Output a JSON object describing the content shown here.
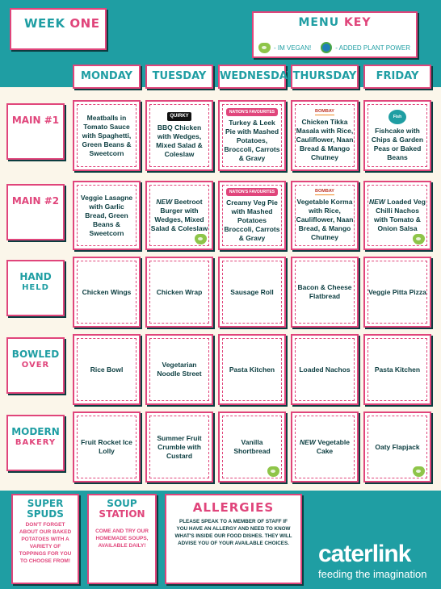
{
  "header": {
    "week_label_a": "WEEK ",
    "week_label_b": "ONE",
    "key_title_a": "MENU ",
    "key_title_b": "KEY",
    "key_vegan": "- IM VEGAN!",
    "key_plant": "- ADDED PLANT POWER"
  },
  "days": [
    "MONDAY",
    "TUESDAY",
    "WEDNESDAY",
    "THURSDAY",
    "FRIDAY"
  ],
  "rows": [
    {
      "label_a": "MAIN #1",
      "label_b": "",
      "cells": [
        {
          "text": "Meatballs in Tomato Sauce with Spaghetti, Green Beans & Sweetcorn",
          "new": "",
          "badge": "",
          "badge_type": "",
          "vegan": false
        },
        {
          "text": "BBQ Chicken with Wedges, Mixed Salad & Coleslaw",
          "new": "",
          "badge": "QUIRKY",
          "badge_type": "quirky",
          "vegan": false
        },
        {
          "text": "Turkey & Leek Pie with Mashed Potatoes, Broccoli, Carrots & Gravy",
          "new": "",
          "badge": "NATION'S FAVOURITES",
          "badge_type": "nf",
          "vegan": false
        },
        {
          "text": "Chicken Tikka Masala with Rice, Cauliflower, Naan Bread & Mango Chutney",
          "new": "",
          "badge": "BOMBAY",
          "badge_type": "bombay",
          "vegan": false
        },
        {
          "text": "Fishcake with Chips & Garden Peas or Baked Beans",
          "new": "",
          "badge": "Fish Chips",
          "badge_type": "fish",
          "vegan": false
        }
      ]
    },
    {
      "label_a": "MAIN #2",
      "label_b": "",
      "cells": [
        {
          "text": "Veggie Lasagne with Garlic Bread, Green Beans & Sweetcorn",
          "new": "",
          "badge": "",
          "badge_type": "",
          "vegan": false
        },
        {
          "text": "Beetroot Burger with Wedges, Mixed Salad & Coleslaw",
          "new": "NEW",
          "badge": "",
          "badge_type": "",
          "vegan": true
        },
        {
          "text": "Creamy Veg Pie with Mashed Potatoes Broccoli, Carrots & Gravy",
          "new": "",
          "badge": "NATION'S FAVOURITES",
          "badge_type": "nf",
          "vegan": false
        },
        {
          "text": "Vegetable Korma with Rice, Cauliflower, Naan Bread, & Mango Chutney",
          "new": "",
          "badge": "BOMBAY",
          "badge_type": "bombay",
          "vegan": false
        },
        {
          "text": "Loaded Veg Chilli Nachos with Tomato & Onion Salsa",
          "new": "NEW",
          "badge": "",
          "badge_type": "",
          "vegan": true
        }
      ]
    },
    {
      "label_a": "HAND",
      "label_b": "HELD",
      "cells": [
        {
          "text": "Chicken Wings",
          "new": "",
          "badge": "",
          "badge_type": "",
          "vegan": false
        },
        {
          "text": "Chicken Wrap",
          "new": "",
          "badge": "",
          "badge_type": "",
          "vegan": false
        },
        {
          "text": "Sausage Roll",
          "new": "",
          "badge": "",
          "badge_type": "",
          "vegan": false
        },
        {
          "text": "Bacon & Cheese Flatbread",
          "new": "",
          "badge": "",
          "badge_type": "",
          "vegan": false
        },
        {
          "text": "Veggie Pitta Pizza",
          "new": "",
          "badge": "",
          "badge_type": "",
          "vegan": false
        }
      ]
    },
    {
      "label_a": "BOWLED",
      "label_b": "OVER",
      "cells": [
        {
          "text": "Rice Bowl",
          "new": "",
          "badge": "",
          "badge_type": "",
          "vegan": false
        },
        {
          "text": "Vegetarian Noodle Street",
          "new": "",
          "badge": "",
          "badge_type": "",
          "vegan": false
        },
        {
          "text": "Pasta Kitchen",
          "new": "",
          "badge": "",
          "badge_type": "",
          "vegan": false
        },
        {
          "text": "Loaded Nachos",
          "new": "",
          "badge": "",
          "badge_type": "",
          "vegan": false
        },
        {
          "text": "Pasta Kitchen",
          "new": "",
          "badge": "",
          "badge_type": "",
          "vegan": false
        }
      ]
    },
    {
      "label_a": "MODERN",
      "label_b": "BAKERY",
      "cells": [
        {
          "text": "Fruit Rocket Ice Lolly",
          "new": "",
          "badge": "",
          "badge_type": "",
          "vegan": false
        },
        {
          "text": "Summer Fruit Crumble with Custard",
          "new": "",
          "badge": "",
          "badge_type": "",
          "vegan": false
        },
        {
          "text": "Vanilla Shortbread",
          "new": "",
          "badge": "",
          "badge_type": "",
          "vegan": true
        },
        {
          "text": "Vegetable Cake",
          "new": "NEW",
          "badge": "",
          "badge_type": "",
          "vegan": false
        },
        {
          "text": "Oaty Flapjack",
          "new": "",
          "badge": "",
          "badge_type": "",
          "vegan": true
        }
      ]
    }
  ],
  "super_spuds": {
    "title_a": "SUPER",
    "title_b": "SPUDS",
    "text": "DON'T FORGET ABOUT OUR BAKED POTATOES WITH A VARIETY OF TOPPINGS FOR YOU TO CHOOSE FROM!"
  },
  "soup_station": {
    "title_a": "SOUP",
    "title_b": "STATION",
    "text": "COME AND TRY OUR HOMEMADE SOUPS, AVAILABLE DAILY!"
  },
  "allergies": {
    "title": "ALLERGIES",
    "text": "PLEASE SPEAK TO A MEMBER OF STAFF IF YOU HAVE AN ALLERGY AND NEED TO KNOW WHAT'S INSIDE OUR FOOD DISHES. THEY WILL ADVISE YOU OF YOUR AVAILABLE CHOICES."
  },
  "brand": {
    "name": "caterlink",
    "tagline": "feeding the imagination"
  },
  "colors": {
    "teal": "#1f9ea3",
    "pink": "#e0457b",
    "navy": "#0b3d40",
    "cream": "#fbf6ea",
    "vegan_green": "#8ec549"
  }
}
